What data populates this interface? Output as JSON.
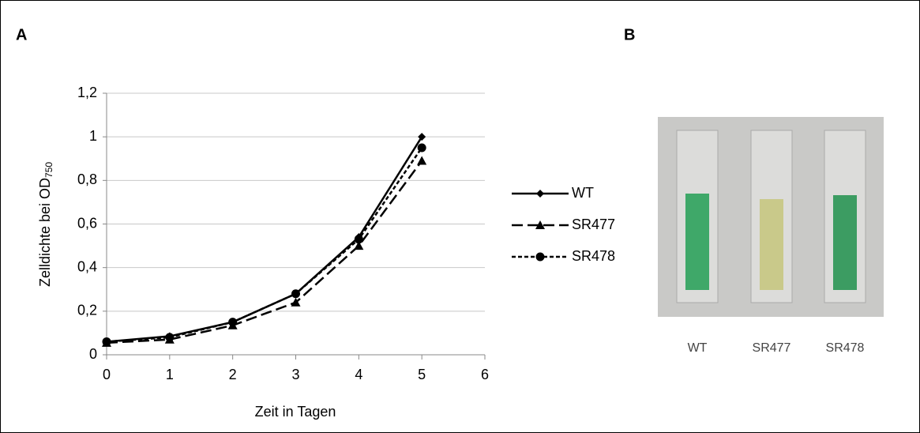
{
  "chart_data": {
    "type": "line",
    "panel_label": "A",
    "x_label": "Zeit in Tagen",
    "y_label": "Zelldichte bei OD",
    "y_label_subscript": "750",
    "x": [
      0,
      1,
      2,
      3,
      4,
      5
    ],
    "xlim": [
      0,
      6
    ],
    "xticks": [
      0,
      1,
      2,
      3,
      4,
      5,
      6
    ],
    "ylim": [
      0,
      1.2
    ],
    "yticks": [
      0,
      {
        "value": 0.2,
        "label": "0,2"
      },
      {
        "value": 0.4,
        "label": "0,4"
      },
      {
        "value": 0.6,
        "label": "0,6"
      },
      {
        "value": 0.8,
        "label": "0,8"
      },
      1,
      {
        "value": 1.2,
        "label": "1,2"
      }
    ],
    "grid": true,
    "legend": "right",
    "series": [
      {
        "name": "WT",
        "color": "#000000",
        "marker": "diamond",
        "dash": "solid",
        "values": [
          0.06,
          0.085,
          0.15,
          0.28,
          0.54,
          1.0
        ]
      },
      {
        "name": "SR477",
        "color": "#000000",
        "marker": "triangle",
        "dash": "long",
        "values": [
          0.055,
          0.07,
          0.135,
          0.24,
          0.5,
          0.89
        ]
      },
      {
        "name": "SR478",
        "color": "#000000",
        "marker": "circle",
        "dash": "short",
        "values": [
          0.06,
          0.08,
          0.15,
          0.28,
          0.53,
          0.95
        ]
      }
    ]
  },
  "photo": {
    "panel_label": "B",
    "labels": [
      "WT",
      "SR477",
      "SR478"
    ]
  }
}
